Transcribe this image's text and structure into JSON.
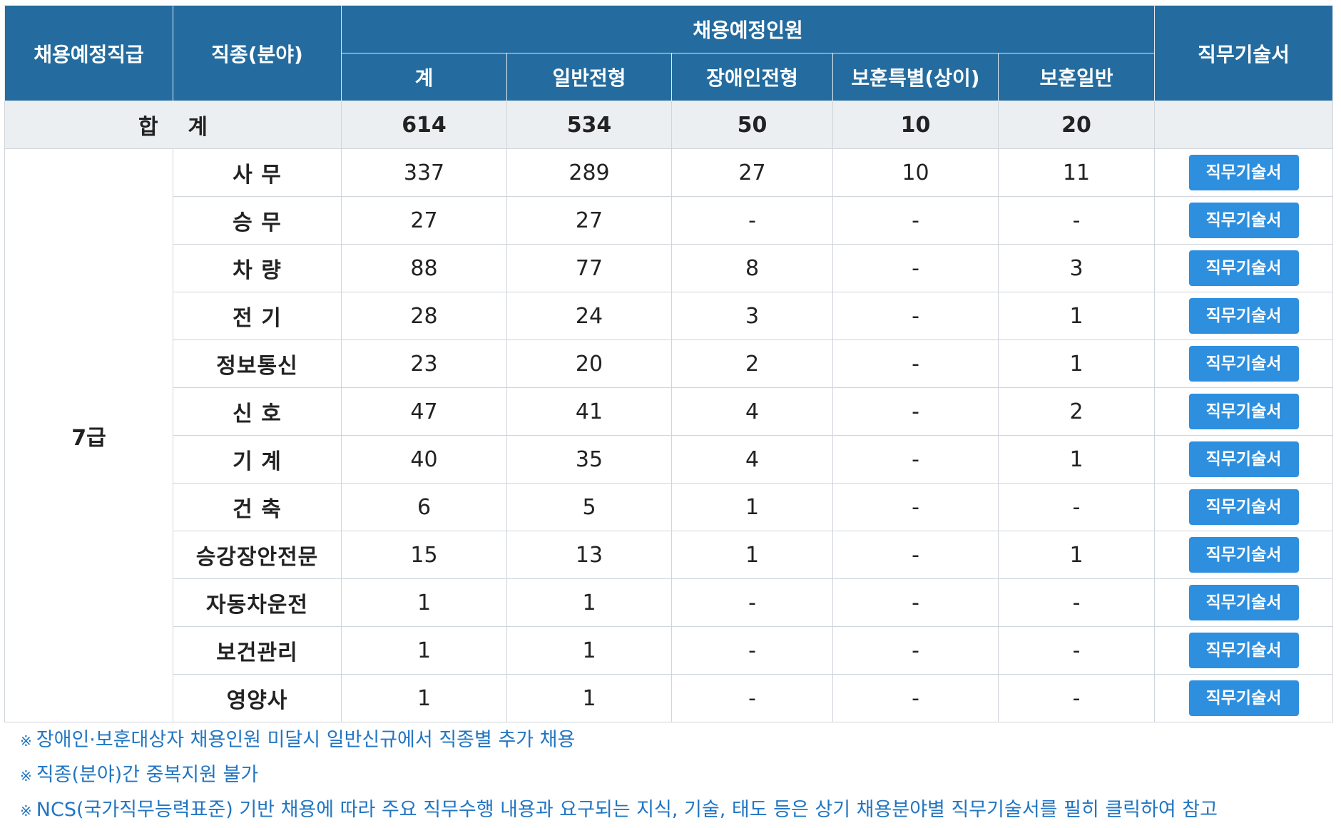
{
  "header": {
    "grade": "채용예정직급",
    "field": "직종(분야)",
    "planned": "채용예정인원",
    "total": "계",
    "general": "일반전형",
    "disabled": "장애인전형",
    "veteran_special": "보훈특별(상이)",
    "veteran_general": "보훈일반",
    "job_desc": "직무기술서"
  },
  "total_row": {
    "label": "합    계",
    "total": "614",
    "general": "534",
    "disabled": "50",
    "veteran_special": "10",
    "veteran_general": "20"
  },
  "grade_label": "7급",
  "rows": [
    {
      "field": "사 무",
      "total": "337",
      "general": "289",
      "disabled": "27",
      "veteran_special": "10",
      "veteran_general": "11",
      "button": "직무기술서"
    },
    {
      "field": "승 무",
      "total": "27",
      "general": "27",
      "disabled": "-",
      "veteran_special": "-",
      "veteran_general": "-",
      "button": "직무기술서"
    },
    {
      "field": "차 량",
      "total": "88",
      "general": "77",
      "disabled": "8",
      "veteran_special": "-",
      "veteran_general": "3",
      "button": "직무기술서"
    },
    {
      "field": "전 기",
      "total": "28",
      "general": "24",
      "disabled": "3",
      "veteran_special": "-",
      "veteran_general": "1",
      "button": "직무기술서"
    },
    {
      "field": "정보통신",
      "total": "23",
      "general": "20",
      "disabled": "2",
      "veteran_special": "-",
      "veteran_general": "1",
      "button": "직무기술서"
    },
    {
      "field": "신 호",
      "total": "47",
      "general": "41",
      "disabled": "4",
      "veteran_special": "-",
      "veteran_general": "2",
      "button": "직무기술서"
    },
    {
      "field": "기 계",
      "total": "40",
      "general": "35",
      "disabled": "4",
      "veteran_special": "-",
      "veteran_general": "1",
      "button": "직무기술서"
    },
    {
      "field": "건 축",
      "total": "6",
      "general": "5",
      "disabled": "1",
      "veteran_special": "-",
      "veteran_general": "-",
      "button": "직무기술서"
    },
    {
      "field": "승강장안전문",
      "total": "15",
      "general": "13",
      "disabled": "1",
      "veteran_special": "-",
      "veteran_general": "1",
      "button": "직무기술서"
    },
    {
      "field": "자동차운전",
      "total": "1",
      "general": "1",
      "disabled": "-",
      "veteran_special": "-",
      "veteran_general": "-",
      "button": "직무기술서"
    },
    {
      "field": "보건관리",
      "total": "1",
      "general": "1",
      "disabled": "-",
      "veteran_special": "-",
      "veteran_general": "-",
      "button": "직무기술서"
    },
    {
      "field": "영양사",
      "total": "1",
      "general": "1",
      "disabled": "-",
      "veteran_special": "-",
      "veteran_general": "-",
      "button": "직무기술서"
    }
  ],
  "notes_mark": "※",
  "notes": [
    "장애인·보훈대상자 채용인원 미달시 일반신규에서 직종별 추가 채용",
    "직종(분야)간 중복지원 불가",
    "NCS(국가직무능력표준) 기반 채용에 따라 주요 직무수행 내용과 요구되는 지식, 기술, 태도 등은 상기 채용분야별 직무기술서를 필히 클릭하여 참고"
  ],
  "colors": {
    "header_bg": "#246c9f",
    "total_row_bg": "#eceff2",
    "button_bg": "#2e8fde",
    "note_text": "#2276c2"
  }
}
